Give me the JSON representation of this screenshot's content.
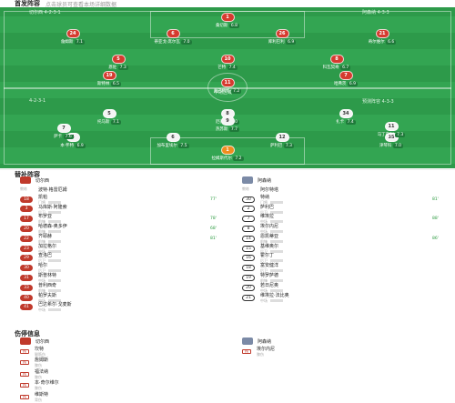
{
  "header": {
    "title": "首发阵容",
    "subtitle": "点击球员可查看本场详细数据"
  },
  "pitch": {
    "home_info": "切尔西 4-2-3-1",
    "away_info": "阿森纳 4-3-3",
    "left_marker": "4-2-3-1",
    "right_marker": "预测阵容 4-3-3",
    "mid_label": "中场区域"
  },
  "home_players": [
    {
      "n": "1",
      "name": "桑切斯",
      "rating": "6.8"
    },
    {
      "n": "24",
      "name": "詹姆斯",
      "rating": "7.1"
    },
    {
      "n": "6",
      "name": "蒂亚戈·席尔瓦",
      "rating": "7.0"
    },
    {
      "n": "26",
      "name": "库利巴利",
      "rating": "6.9"
    },
    {
      "n": "21",
      "name": "奇尔维尔",
      "rating": "6.6"
    },
    {
      "n": "5",
      "name": "恩佐",
      "rating": "7.3"
    },
    {
      "n": "8",
      "name": "科瓦契奇",
      "rating": "6.7"
    },
    {
      "n": "10",
      "name": "芒特",
      "rating": "7.4"
    },
    {
      "n": "19",
      "name": "斯特林",
      "rating": "6.5"
    },
    {
      "n": "7",
      "name": "哈弗茨",
      "rating": "6.9"
    },
    {
      "n": "11",
      "name": "奥巴梅扬",
      "rating": "7.2"
    }
  ],
  "away_players": [
    {
      "n": "1",
      "name": "拉姆斯代尔",
      "rating": "7.2"
    },
    {
      "n": "4",
      "name": "本·怀特",
      "rating": "6.9"
    },
    {
      "n": "6",
      "name": "加布里埃尔",
      "rating": "7.5"
    },
    {
      "n": "12",
      "name": "萨利巴",
      "rating": "7.3"
    },
    {
      "n": "35",
      "name": "津琴科",
      "rating": "7.0"
    },
    {
      "n": "5",
      "name": "托马斯",
      "rating": "7.1"
    },
    {
      "n": "8",
      "name": "厄德高",
      "rating": "8.0"
    },
    {
      "n": "34",
      "name": "扎卡",
      "rating": "7.4"
    },
    {
      "n": "7",
      "name": "萨卡",
      "rating": "7.6"
    },
    {
      "n": "9",
      "name": "热苏斯",
      "rating": "7.7"
    },
    {
      "n": "11",
      "name": "马丁内利",
      "rating": "7.3"
    }
  ],
  "bench": {
    "title": "替补阵容",
    "home": {
      "team": "切尔西",
      "coach": "波特·格雷厄姆"
    },
    "away": {
      "team": "阿森纳",
      "coach": "阿尔特塔"
    },
    "home_list": [
      {
        "n": "18",
        "name": "凯帕",
        "pos": "门将",
        "evt": "77'"
      },
      {
        "n": "3",
        "name": "马库斯·阿隆索",
        "pos": "后卫",
        "evt": ""
      },
      {
        "n": "17",
        "name": "布罗亚",
        "pos": "前锋",
        "evt": "78'"
      },
      {
        "n": "20",
        "name": "哈德森-奥多伊",
        "pos": "前锋",
        "evt": "68'"
      },
      {
        "n": "22",
        "name": "齐耶赫",
        "pos": "前锋",
        "evt": "81'"
      },
      {
        "n": "23",
        "name": "加拉格尔",
        "pos": "中场",
        "evt": ""
      },
      {
        "n": "29",
        "name": "查洛巴",
        "pos": "后卫",
        "evt": ""
      },
      {
        "n": "30",
        "name": "哈尔",
        "pos": "后卫",
        "evt": ""
      },
      {
        "n": "31",
        "name": "斯普林特",
        "pos": "中场",
        "evt": ""
      },
      {
        "n": "33",
        "name": "普利西奇",
        "pos": "前锋",
        "evt": ""
      },
      {
        "n": "40",
        "name": "帕罗夫斯",
        "pos": "中场",
        "evt": ""
      },
      {
        "n": "41",
        "name": "巴达希尔·戈麦斯",
        "pos": "中场",
        "evt": ""
      }
    ],
    "away_list": [
      {
        "n": "30",
        "name": "特纳",
        "pos": "门将",
        "evt": "81'"
      },
      {
        "n": "2",
        "name": "萨利巴",
        "pos": "后卫",
        "evt": ""
      },
      {
        "n": "7",
        "name": "维埃拉",
        "pos": "中场",
        "evt": "88'"
      },
      {
        "n": "8",
        "name": "埃尔内尼",
        "pos": "中场",
        "evt": ""
      },
      {
        "n": "14",
        "name": "恩凯蒂亚",
        "pos": "前锋",
        "evt": "86'"
      },
      {
        "n": "15",
        "name": "基维奥尔",
        "pos": "后卫",
        "evt": ""
      },
      {
        "n": "16",
        "name": "霍尔丁",
        "pos": "后卫",
        "evt": ""
      },
      {
        "n": "18",
        "name": "富安健洋",
        "pos": "后卫",
        "evt": ""
      },
      {
        "n": "19",
        "name": "特罗萨德",
        "pos": "前锋",
        "evt": ""
      },
      {
        "n": "20",
        "name": "若日尼奥",
        "pos": "中场",
        "evt": ""
      },
      {
        "n": "21",
        "name": "维埃拉·法比奥",
        "pos": "中场",
        "evt": ""
      }
    ]
  },
  "injury": {
    "title": "伤停信息",
    "home_team": "切尔西",
    "away_team": "阿森纳",
    "home_list": [
      {
        "tag": "伤",
        "name": "坎特",
        "reason": "腿筋伤"
      },
      {
        "tag": "伤",
        "name": "詹姆斯",
        "reason": "膝伤"
      },
      {
        "tag": "伤",
        "name": "福法纳",
        "reason": "膝伤"
      },
      {
        "tag": "伤",
        "name": "本·奇尔维尔",
        "reason": "膝伤"
      },
      {
        "tag": "伤",
        "name": "维斯特",
        "reason": "背伤"
      }
    ],
    "away_list": [
      {
        "tag": "伤",
        "name": "埃尔内尼",
        "reason": "膝伤"
      }
    ]
  },
  "colors": {
    "home": "#d63a2f",
    "away": "#f4f4f4",
    "pitch": "#2d9a4a",
    "accent": "#2a9a3e"
  }
}
